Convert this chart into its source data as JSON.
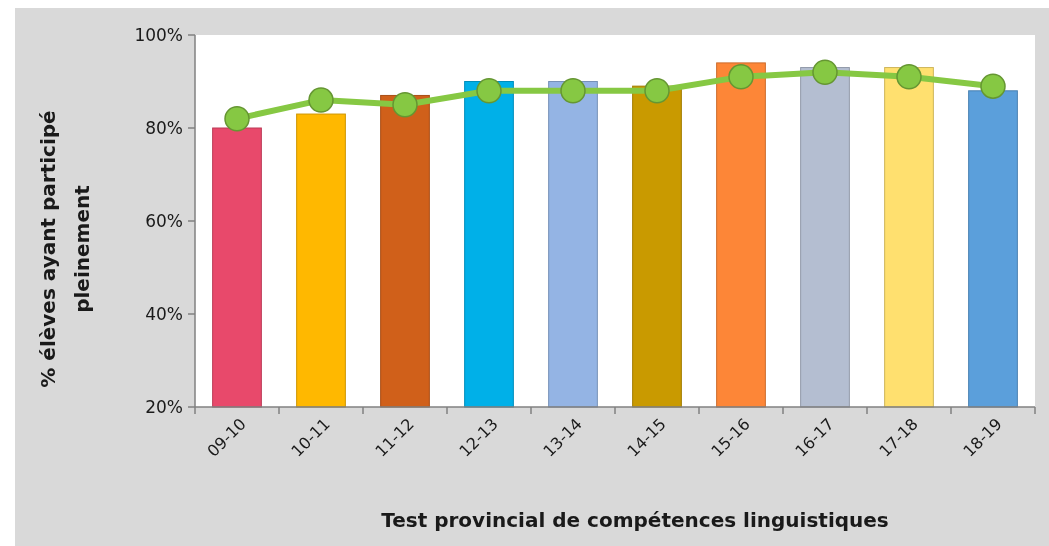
{
  "chart_data": {
    "type": "bar",
    "xlabel": "Test provincial de compétences linguistiques",
    "ylabel": "% élèves ayant participé pleinement",
    "categories": [
      "09-10",
      "10-11",
      "11-12",
      "12-13",
      "13-14",
      "14-15",
      "15-16",
      "16-17",
      "17-18",
      "18-19"
    ],
    "series": [
      {
        "colors": [
          "#e8496b",
          "#ffb800",
          "#d0601a",
          "#00b0e8",
          "#94b4e4",
          "#c99a00",
          "#fd8637",
          "#b4bed1",
          "#ffe06f",
          "#5b9fdb"
        ],
        "values": [
          80,
          83,
          87,
          90,
          90,
          89,
          94,
          93,
          93,
          88
        ]
      },
      {
        "type": "line",
        "color": "#86c843",
        "marker": "circle",
        "values": [
          82,
          86,
          85,
          88,
          88,
          88,
          91,
          92,
          91,
          89
        ]
      }
    ],
    "ylim": [
      20,
      100
    ],
    "yticks": [
      {
        "value": 20,
        "label": "20%"
      },
      {
        "value": 40,
        "label": "40%"
      },
      {
        "value": 60,
        "label": "60%"
      },
      {
        "value": 80,
        "label": "80%"
      },
      {
        "value": 100,
        "label": "100%"
      }
    ],
    "grid": false
  }
}
